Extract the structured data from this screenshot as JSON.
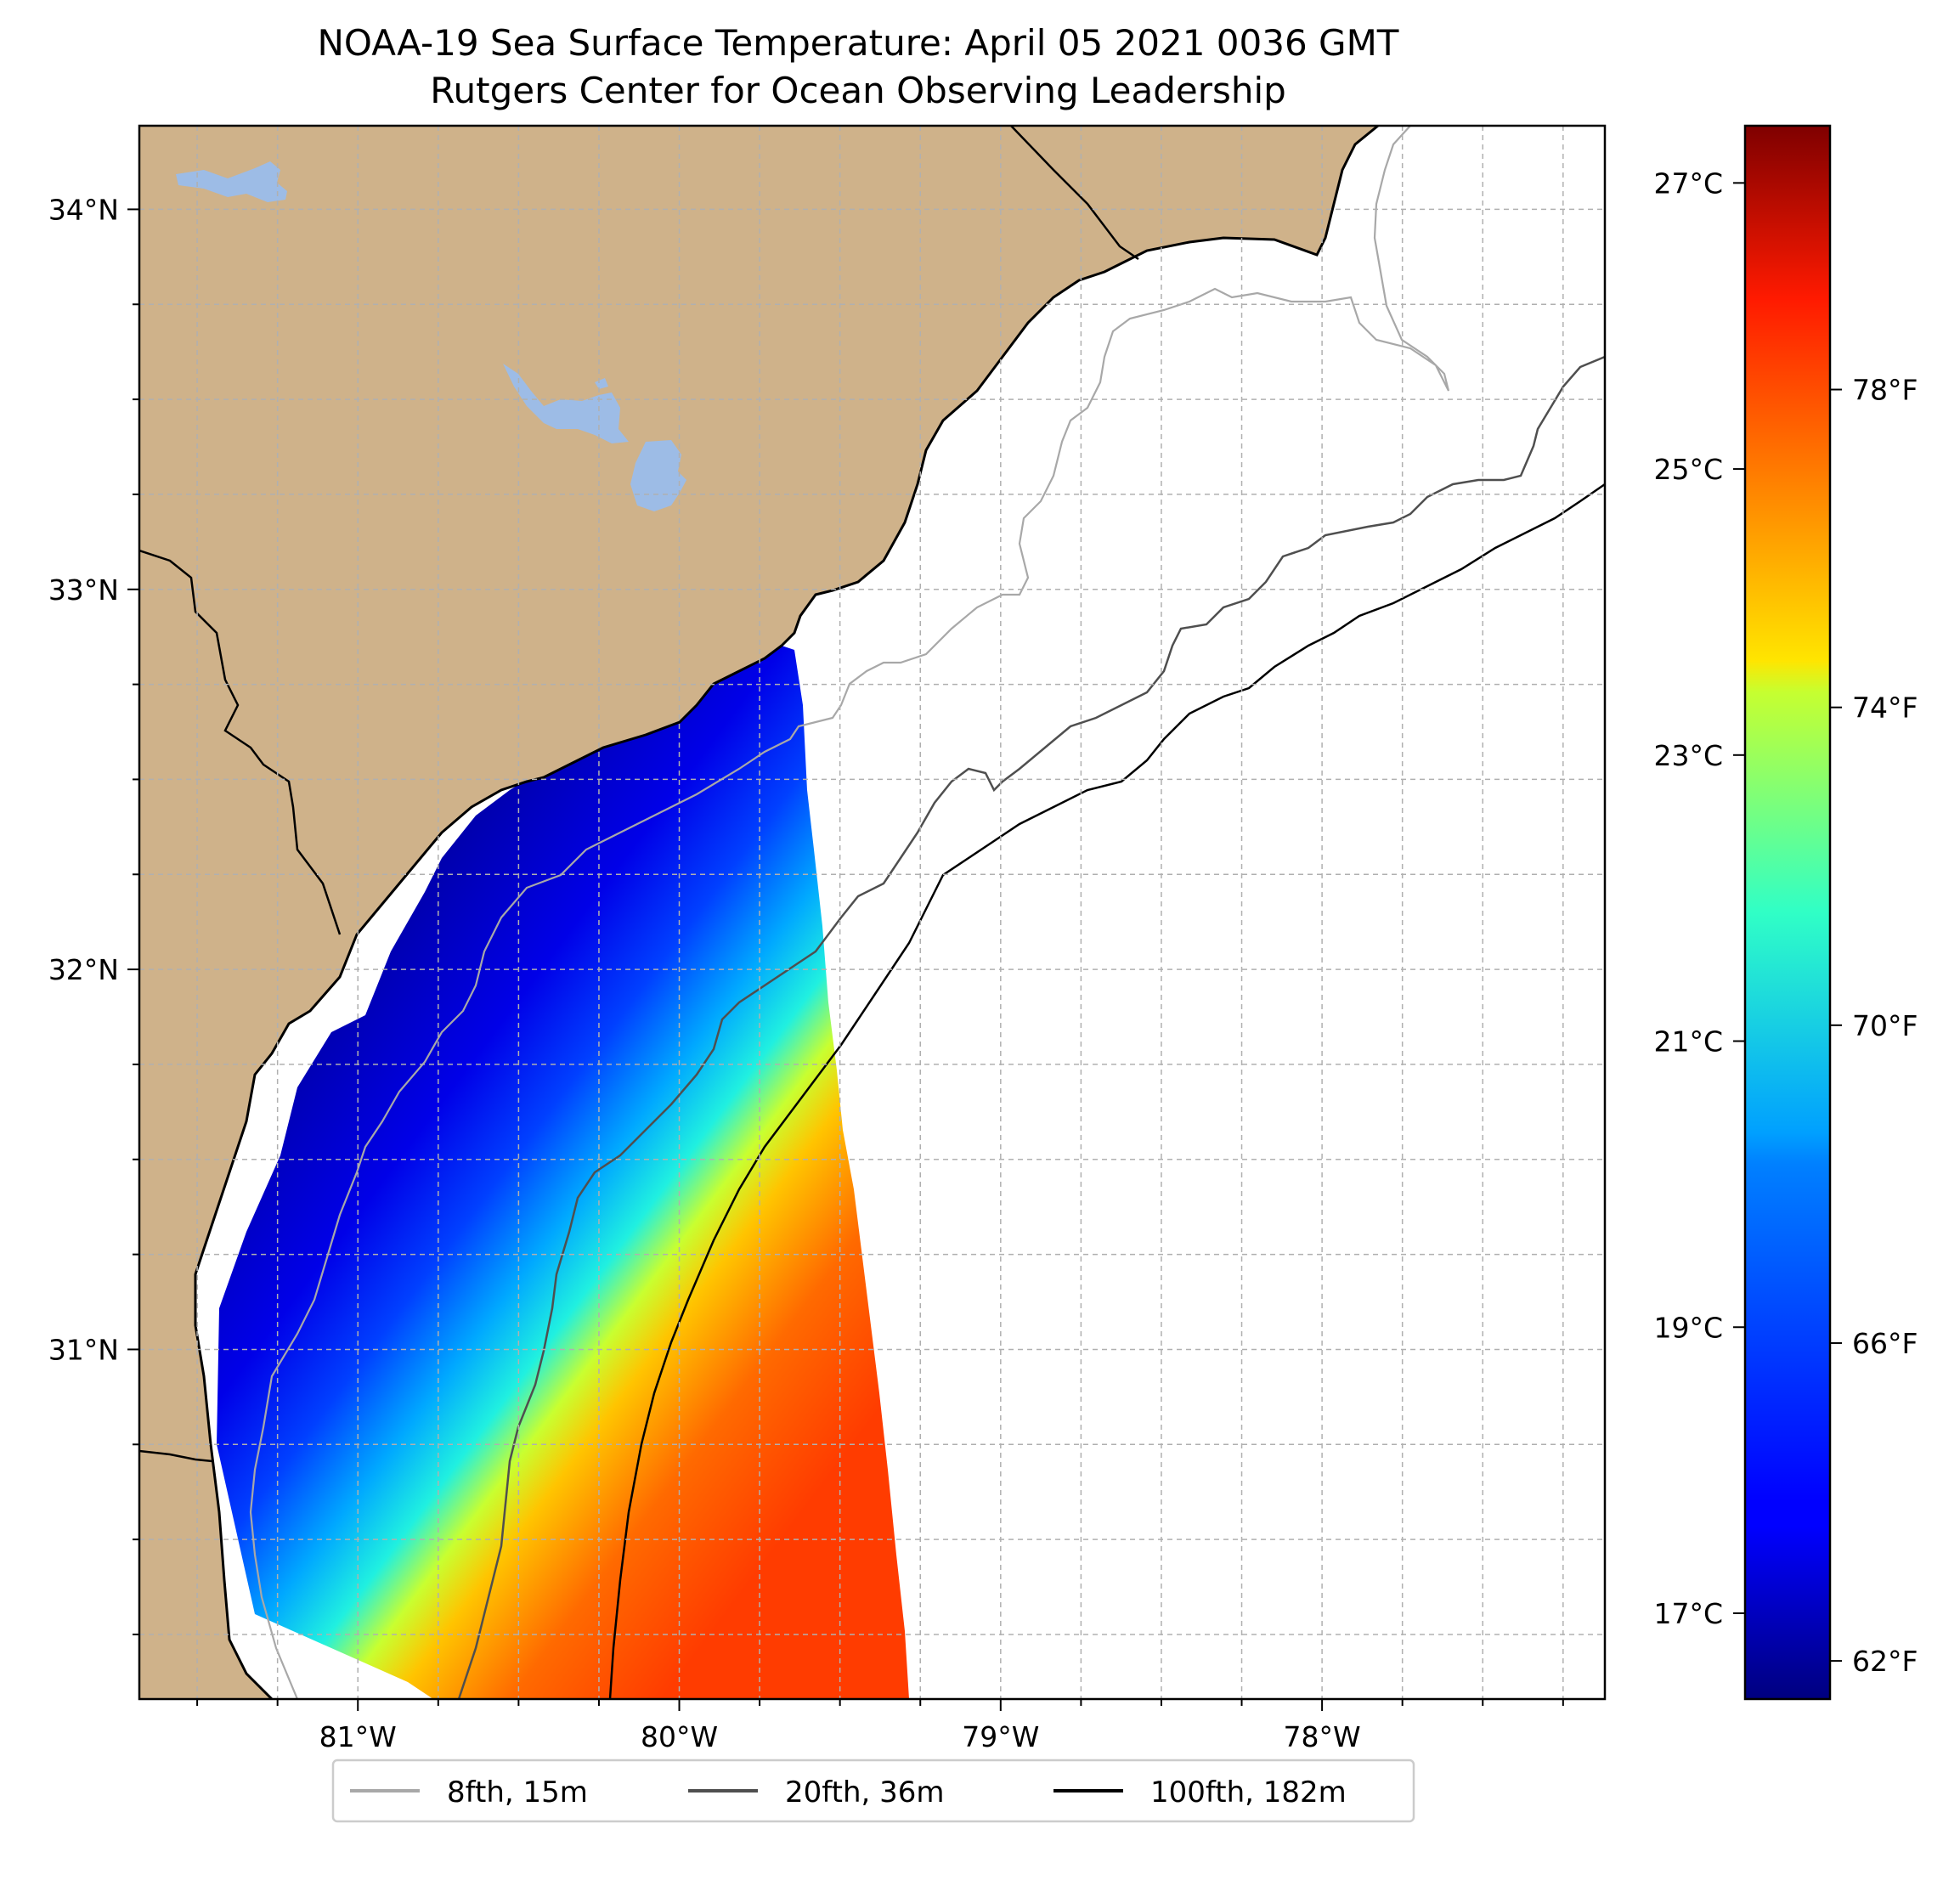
{
  "title": {
    "line1": "NOAA-19 Sea Surface Temperature: April 05 2021 0036 GMT",
    "line2": "Rutgers Center for Ocean Observing Leadership"
  },
  "colors": {
    "land": "#cfb28a",
    "lake": "#9dbce6",
    "coast": "#000000",
    "grid": "#b0b0b0",
    "iso8": "#a8a8a8",
    "iso20": "#4f4f4f",
    "iso100": "#000000"
  },
  "map": {
    "lon_range": [
      -81.68,
      -77.12
    ],
    "lat_range": [
      30.08,
      34.22
    ],
    "lon_ticks": [
      {
        "value": -81,
        "label": "81°W"
      },
      {
        "value": -80,
        "label": "80°W"
      },
      {
        "value": -79,
        "label": "79°W"
      },
      {
        "value": -78,
        "label": "78°W"
      }
    ],
    "lat_ticks": [
      {
        "value": 31,
        "label": "31°N"
      },
      {
        "value": 32,
        "label": "32°N"
      },
      {
        "value": 33,
        "label": "33°N"
      },
      {
        "value": 34,
        "label": "34°N"
      }
    ]
  },
  "colorbar": {
    "colormap": "jet",
    "range_c": [
      16.4,
      27.4
    ],
    "celsius_ticks": [
      {
        "value": 17,
        "label": "17°C"
      },
      {
        "value": 19,
        "label": "19°C"
      },
      {
        "value": 21,
        "label": "21°C"
      },
      {
        "value": 23,
        "label": "23°C"
      },
      {
        "value": 25,
        "label": "25°C"
      },
      {
        "value": 27,
        "label": "27°C"
      }
    ],
    "fahrenheit_ticks": [
      {
        "value": 62,
        "label": "62°F"
      },
      {
        "value": 66,
        "label": "66°F"
      },
      {
        "value": 70,
        "label": "70°F"
      },
      {
        "value": 74,
        "label": "74°F"
      },
      {
        "value": 78,
        "label": "78°F"
      }
    ]
  },
  "legend": {
    "items": [
      {
        "name": "isobath-8fth",
        "label": "8fth, 15m",
        "color": "#a8a8a8"
      },
      {
        "name": "isobath-20fth",
        "label": "20fth, 36m",
        "color": "#4f4f4f"
      },
      {
        "name": "isobath-100fth",
        "label": "100fth, 182m",
        "color": "#000000"
      }
    ]
  }
}
